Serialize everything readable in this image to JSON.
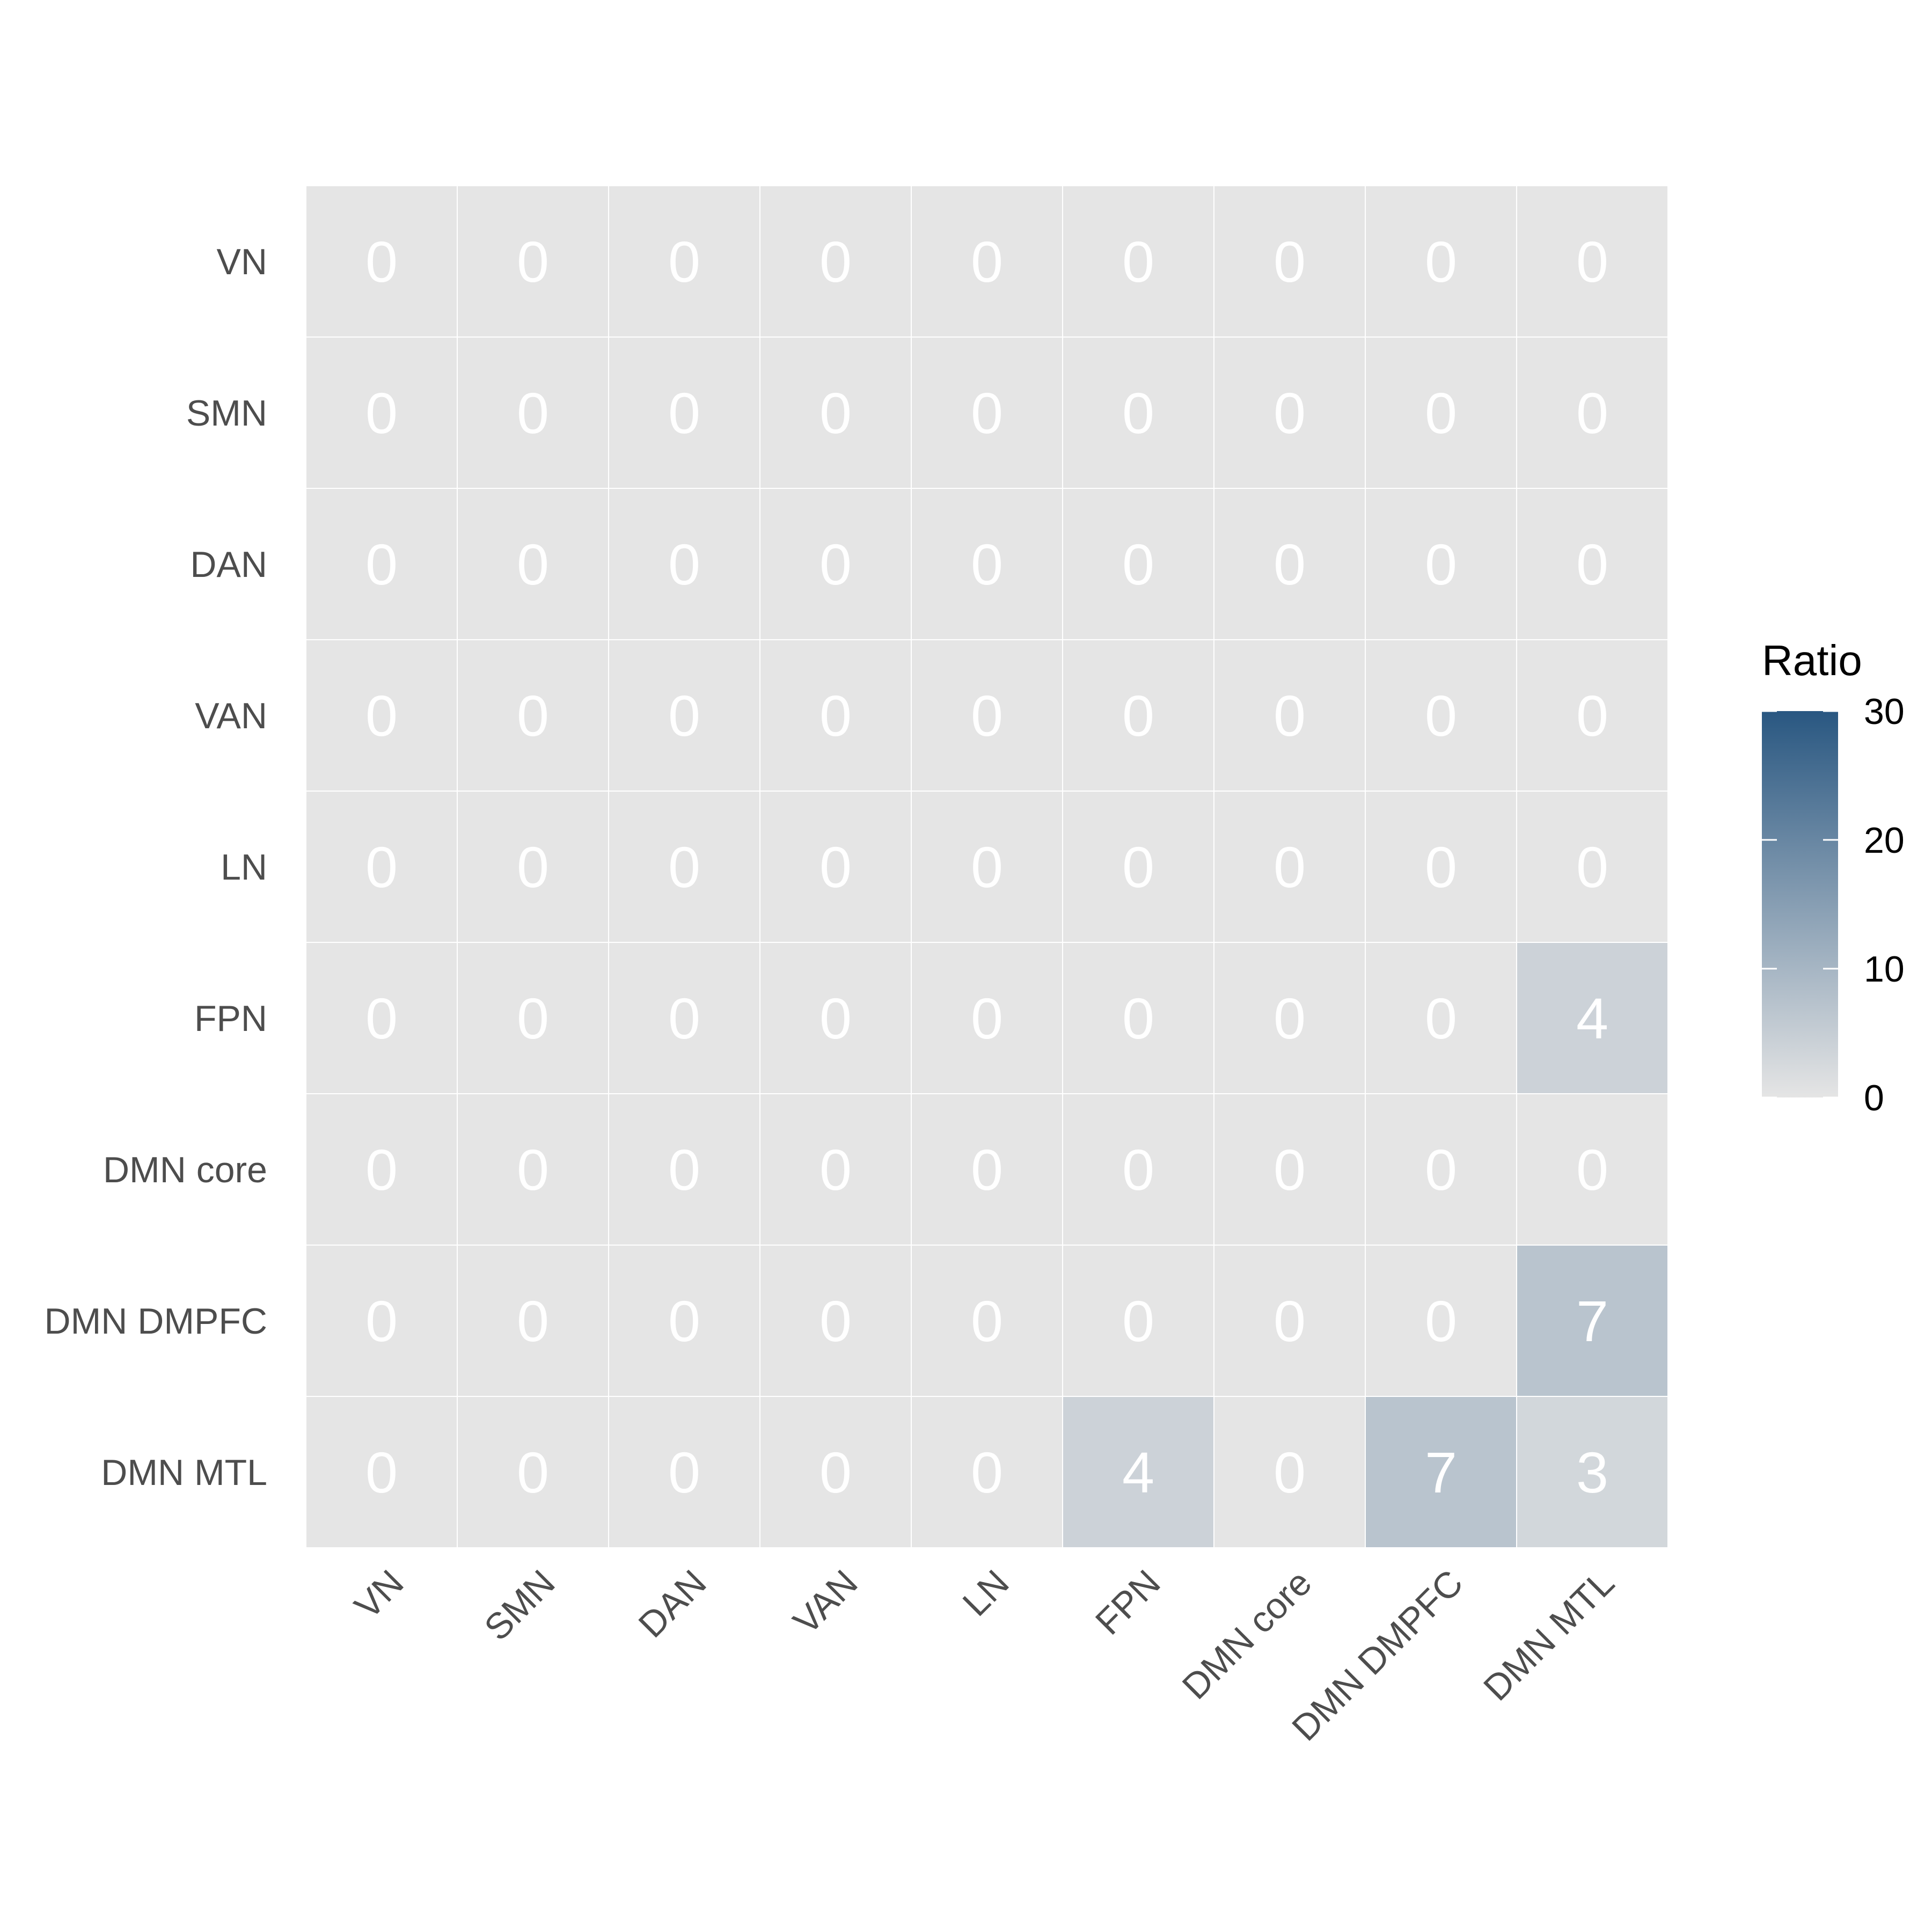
{
  "chart_data": {
    "type": "heatmap",
    "title": "",
    "xlabel": "",
    "ylabel": "",
    "x_categories": [
      "VN",
      "SMN",
      "DAN",
      "VAN",
      "LN",
      "FPN",
      "DMN core",
      "DMN DMPFC",
      "DMN MTL"
    ],
    "y_categories": [
      "VN",
      "SMN",
      "DAN",
      "VAN",
      "LN",
      "FPN",
      "DMN core",
      "DMN DMPFC",
      "DMN MTL"
    ],
    "values": [
      [
        0,
        0,
        0,
        0,
        0,
        0,
        0,
        0,
        0
      ],
      [
        0,
        0,
        0,
        0,
        0,
        0,
        0,
        0,
        0
      ],
      [
        0,
        0,
        0,
        0,
        0,
        0,
        0,
        0,
        0
      ],
      [
        0,
        0,
        0,
        0,
        0,
        0,
        0,
        0,
        0
      ],
      [
        0,
        0,
        0,
        0,
        0,
        0,
        0,
        0,
        0
      ],
      [
        0,
        0,
        0,
        0,
        0,
        0,
        0,
        0,
        4
      ],
      [
        0,
        0,
        0,
        0,
        0,
        0,
        0,
        0,
        0
      ],
      [
        0,
        0,
        0,
        0,
        0,
        0,
        0,
        0,
        7
      ],
      [
        0,
        0,
        0,
        0,
        0,
        4,
        0,
        7,
        3
      ]
    ],
    "legend": {
      "title": "Ratio",
      "min": 0,
      "max": 30,
      "ticks": [
        0,
        10,
        20,
        30
      ],
      "low_color": "#e5e5e5",
      "high_color": "#295781",
      "placement": "right"
    },
    "cell_text_color": "#ffffff",
    "grid_line_color": "#ffffff"
  }
}
